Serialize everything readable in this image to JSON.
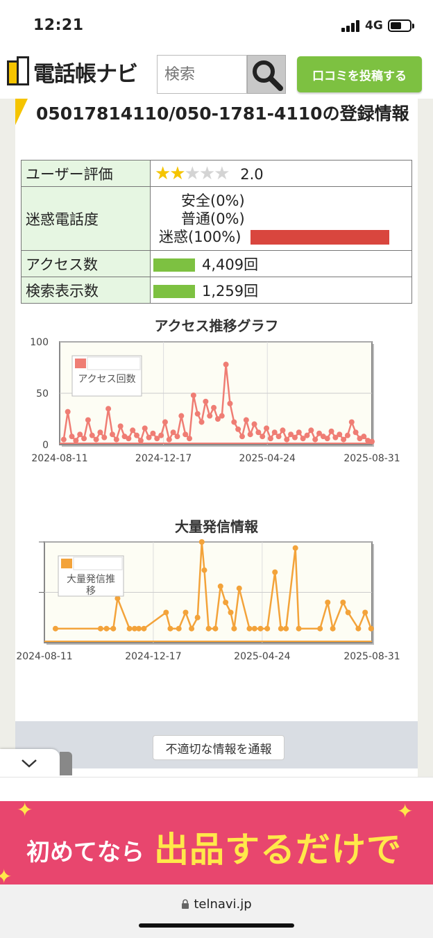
{
  "status": {
    "time": "12:21",
    "network": "4G"
  },
  "header": {
    "logo_text": "電話帳ナビ",
    "search_placeholder": "検索",
    "post_button": "口コミを投稿する"
  },
  "page": {
    "title": "05017814110/050-1781-4110の登録情報"
  },
  "info": {
    "rating_label": "ユーザー評価",
    "rating_stars_on": "★★",
    "rating_stars_off": "★★★",
    "rating_value": "2.0",
    "nuisance_label": "迷惑電話度",
    "safe": "安全(0%)",
    "normal": "普通(0%)",
    "nuisance": "迷惑(100%)",
    "access_label": "アクセス数",
    "access_value": "4,409回",
    "search_label": "検索表示数",
    "search_value": "1,259回"
  },
  "colors": {
    "green": "#7dc141",
    "red": "#d9463e",
    "yellow": "#f5c400",
    "access_series": "#ef7d74",
    "mass_series": "#f3a33a"
  },
  "chart_data": [
    {
      "type": "line",
      "title": "アクセス推移グラフ",
      "legend": "アクセス回数",
      "legend_position": "top-left",
      "x_ticks": [
        "2024-08-11",
        "2024-12-17",
        "2025-04-24",
        "2025-08-31"
      ],
      "y_ticks": [
        "100",
        "50",
        "0"
      ],
      "ylim": [
        0,
        100
      ],
      "grid": true,
      "x_range": [
        "2024-08-11",
        "2025-08-31"
      ],
      "series": [
        {
          "points": [
            [
              "2024-08-16",
              5
            ],
            [
              "2024-08-21",
              32
            ],
            [
              "2024-08-26",
              8
            ],
            [
              "2024-08-31",
              4
            ],
            [
              "2024-09-05",
              10
            ],
            [
              "2024-09-10",
              6
            ],
            [
              "2024-09-15",
              24
            ],
            [
              "2024-09-20",
              9
            ],
            [
              "2024-09-25",
              5
            ],
            [
              "2024-09-30",
              12
            ],
            [
              "2024-10-05",
              7
            ],
            [
              "2024-10-10",
              35
            ],
            [
              "2024-10-15",
              10
            ],
            [
              "2024-10-20",
              5
            ],
            [
              "2024-10-25",
              18
            ],
            [
              "2024-10-30",
              8
            ],
            [
              "2024-11-04",
              6
            ],
            [
              "2024-11-09",
              14
            ],
            [
              "2024-11-14",
              9
            ],
            [
              "2024-11-19",
              4
            ],
            [
              "2024-11-24",
              16
            ],
            [
              "2024-11-29",
              7
            ],
            [
              "2024-12-04",
              11
            ],
            [
              "2024-12-09",
              6
            ],
            [
              "2024-12-14",
              9
            ],
            [
              "2024-12-19",
              22
            ],
            [
              "2024-12-24",
              5
            ],
            [
              "2024-12-29",
              12
            ],
            [
              "2025-01-03",
              8
            ],
            [
              "2025-01-08",
              28
            ],
            [
              "2025-01-13",
              10
            ],
            [
              "2025-01-18",
              6
            ],
            [
              "2025-01-23",
              48
            ],
            [
              "2025-01-28",
              30
            ],
            [
              "2025-02-02",
              22
            ],
            [
              "2025-02-07",
              42
            ],
            [
              "2025-02-12",
              28
            ],
            [
              "2025-02-17",
              36
            ],
            [
              "2025-02-22",
              25
            ],
            [
              "2025-02-27",
              28
            ],
            [
              "2025-03-04",
              78
            ],
            [
              "2025-03-09",
              40
            ],
            [
              "2025-03-14",
              22
            ],
            [
              "2025-03-19",
              15
            ],
            [
              "2025-03-24",
              8
            ],
            [
              "2025-03-29",
              24
            ],
            [
              "2025-04-03",
              10
            ],
            [
              "2025-04-08",
              20
            ],
            [
              "2025-04-13",
              12
            ],
            [
              "2025-04-18",
              8
            ],
            [
              "2025-04-23",
              16
            ],
            [
              "2025-04-28",
              6
            ],
            [
              "2025-05-03",
              12
            ],
            [
              "2025-05-08",
              8
            ],
            [
              "2025-05-13",
              14
            ],
            [
              "2025-05-18",
              5
            ],
            [
              "2025-05-23",
              10
            ],
            [
              "2025-05-28",
              7
            ],
            [
              "2025-06-02",
              12
            ],
            [
              "2025-06-07",
              6
            ],
            [
              "2025-06-12",
              9
            ],
            [
              "2025-06-17",
              14
            ],
            [
              "2025-06-22",
              5
            ],
            [
              "2025-06-27",
              11
            ],
            [
              "2025-07-02",
              8
            ],
            [
              "2025-07-07",
              6
            ],
            [
              "2025-07-12",
              13
            ],
            [
              "2025-07-17",
              7
            ],
            [
              "2025-07-22",
              10
            ],
            [
              "2025-07-27",
              5
            ],
            [
              "2025-08-01",
              9
            ],
            [
              "2025-08-06",
              22
            ],
            [
              "2025-08-11",
              12
            ],
            [
              "2025-08-16",
              6
            ],
            [
              "2025-08-21",
              8
            ],
            [
              "2025-08-26",
              4
            ],
            [
              "2025-08-31",
              3
            ]
          ]
        }
      ]
    },
    {
      "type": "line",
      "title": "大量発信情報",
      "legend": "大量発信推移",
      "legend_position": "top-left",
      "x_ticks": [
        "2024-08-11",
        "2024-12-17",
        "2025-04-24",
        "2025-08-31"
      ],
      "grid": true,
      "x_range": [
        "2024-08-11",
        "2025-08-31"
      ],
      "ylim": [
        0,
        100
      ],
      "series": [
        {
          "points": [
            [
              "2024-08-24",
              14
            ],
            [
              "2024-10-16",
              14
            ],
            [
              "2024-10-23",
              14
            ],
            [
              "2024-10-31",
              14
            ],
            [
              "2024-11-05",
              44
            ],
            [
              "2024-11-19",
              14
            ],
            [
              "2024-11-25",
              14
            ],
            [
              "2024-11-30",
              14
            ],
            [
              "2024-12-06",
              14
            ],
            [
              "2025-01-01",
              30
            ],
            [
              "2025-01-06",
              14
            ],
            [
              "2025-01-16",
              14
            ],
            [
              "2025-01-24",
              30
            ],
            [
              "2025-01-31",
              14
            ],
            [
              "2025-02-07",
              25
            ],
            [
              "2025-02-12",
              101
            ],
            [
              "2025-02-15",
              72
            ],
            [
              "2025-02-20",
              14
            ],
            [
              "2025-02-28",
              14
            ],
            [
              "2025-03-06",
              56
            ],
            [
              "2025-03-12",
              40
            ],
            [
              "2025-03-18",
              30
            ],
            [
              "2025-03-22",
              14
            ],
            [
              "2025-03-28",
              54
            ],
            [
              "2025-04-09",
              14
            ],
            [
              "2025-04-15",
              14
            ],
            [
              "2025-04-22",
              14
            ],
            [
              "2025-04-30",
              14
            ],
            [
              "2025-05-09",
              70
            ],
            [
              "2025-05-16",
              14
            ],
            [
              "2025-05-22",
              14
            ],
            [
              "2025-06-02",
              94
            ],
            [
              "2025-06-06",
              14
            ],
            [
              "2025-07-01",
              14
            ],
            [
              "2025-07-10",
              40
            ],
            [
              "2025-07-16",
              14
            ],
            [
              "2025-07-28",
              40
            ],
            [
              "2025-08-03",
              30
            ],
            [
              "2025-08-15",
              14
            ],
            [
              "2025-08-23",
              30
            ],
            [
              "2025-08-30",
              14
            ]
          ]
        }
      ]
    }
  ],
  "footer": {
    "report_button": "不適切な情報を通報",
    "banner_text1": "初めてなら",
    "banner_text2": "出品するだけで",
    "url": "telnavi.jp"
  }
}
